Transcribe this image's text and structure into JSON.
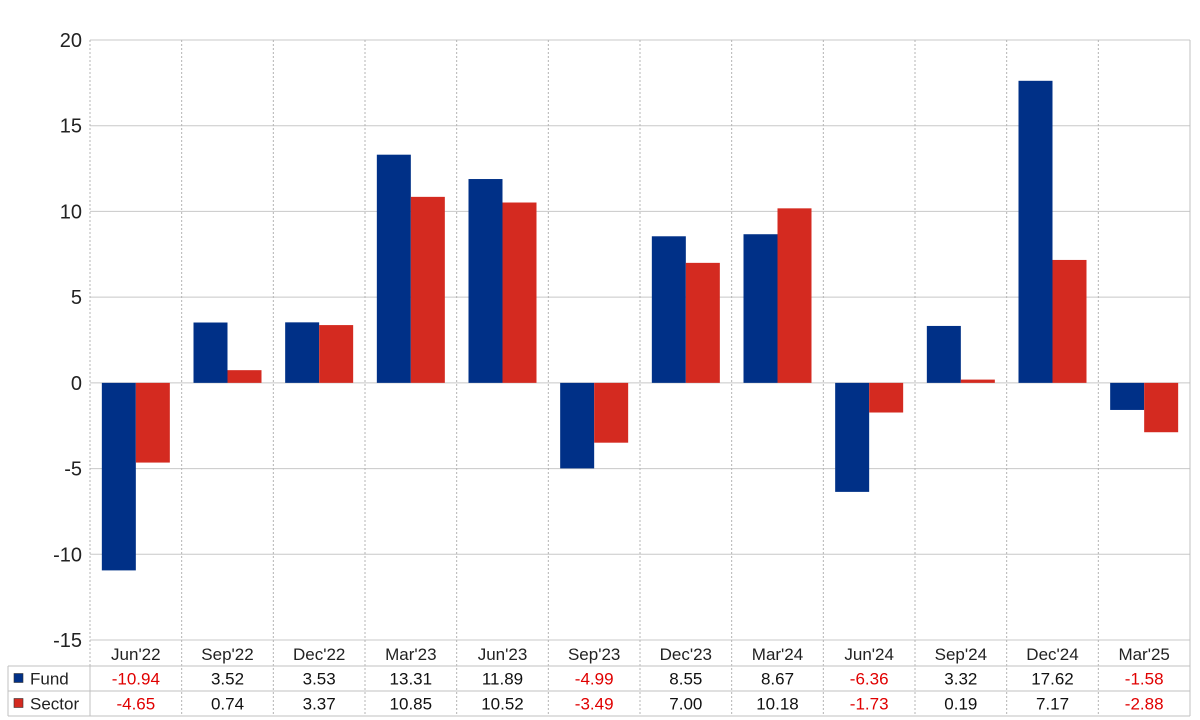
{
  "chart_data": {
    "type": "bar",
    "categories": [
      "Jun'22",
      "Sep'22",
      "Dec'22",
      "Mar'23",
      "Jun'23",
      "Sep'23",
      "Dec'23",
      "Mar'24",
      "Jun'24",
      "Sep'24",
      "Dec'24",
      "Mar'25"
    ],
    "series": [
      {
        "name": "Fund",
        "color": "#003087",
        "values": [
          -10.94,
          3.52,
          3.53,
          13.31,
          11.89,
          -4.99,
          8.55,
          8.67,
          -6.36,
          3.32,
          17.62,
          -1.58
        ],
        "labels": [
          "-10.94",
          "3.52",
          "3.53",
          "13.31",
          "11.89",
          "-4.99",
          "8.55",
          "8.67",
          "-6.36",
          "3.32",
          "17.62",
          "-1.58"
        ]
      },
      {
        "name": "Sector",
        "color": "#d42a20",
        "values": [
          -4.65,
          0.74,
          3.37,
          10.85,
          10.52,
          -3.49,
          7.0,
          10.18,
          -1.73,
          0.19,
          7.17,
          -2.88
        ],
        "labels": [
          "-4.65",
          "0.74",
          "3.37",
          "10.85",
          "10.52",
          "-3.49",
          "7.00",
          "10.18",
          "-1.73",
          "0.19",
          "7.17",
          "-2.88"
        ]
      }
    ],
    "ylim": [
      -15,
      20
    ],
    "yticks": [
      "-15",
      "-10",
      "-5",
      "0",
      "5",
      "10",
      "15",
      "20"
    ],
    "grid": true,
    "negative_color": "#e00000",
    "positive_color": "#111111",
    "legend_placement": "data-table-left"
  }
}
